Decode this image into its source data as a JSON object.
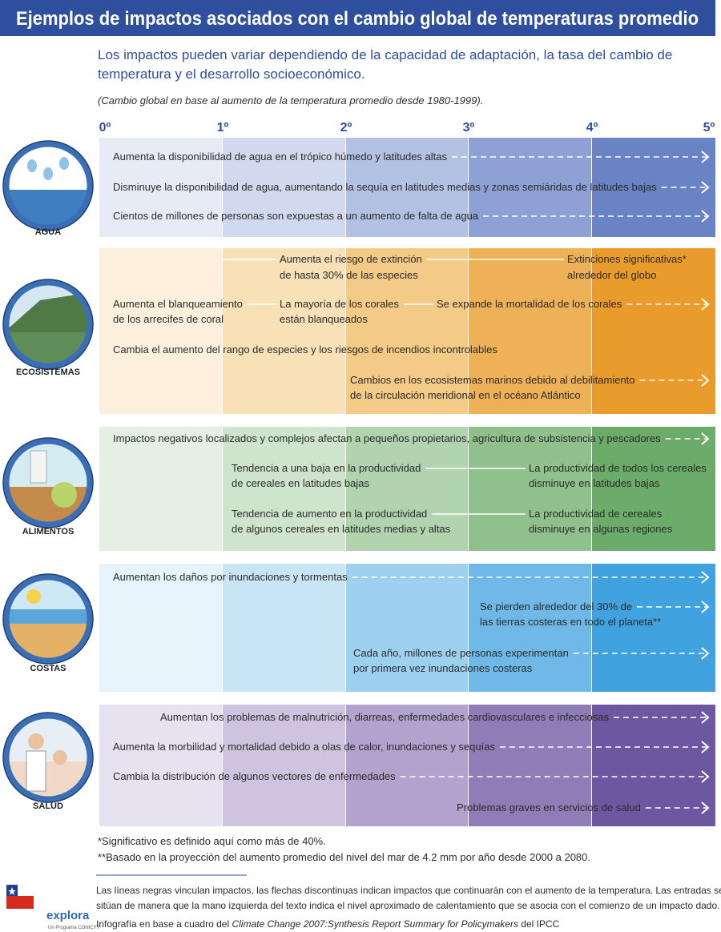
{
  "header": {
    "title": "Ejemplos de impactos asociados con el cambio global de temperaturas promedio",
    "subtitle_lines": [
      "Los impactos pueden variar dependiendo de la capacidad de adaptación, la tasa del cambio de",
      "temperatura y el desarrollo socioeconómico."
    ],
    "note": "(Cambio global en base al aumento de la temperatura promedio desde 1980-1999)."
  },
  "scale": [
    "0º",
    "1º",
    "2º",
    "3º",
    "4º",
    "5º"
  ],
  "sections": [
    {
      "label": "AGUA",
      "items": [
        {
          "lines": [
            "Aumenta la disponibilidad de agua en el trópico húmedo y latitudes altas"
          ]
        },
        {
          "lines": [
            "Disminuye la disponibilidad de agua, aumentando la sequía en latitudes medias y zonas semiáridas de latitudes bajas"
          ]
        },
        {
          "lines": [
            "Cientos de millones de personas son expuestas a un aumento de falta de agua"
          ]
        }
      ]
    },
    {
      "label": "ECOSISTEMAS",
      "items": [
        {
          "lines": [
            "Aumenta el riesgo de extinción",
            "de hasta 30% de las especies"
          ]
        },
        {
          "lines": [
            "Extinciones significativas*",
            "alrededor del globo"
          ]
        },
        {
          "lines": [
            "Aumenta el blanqueamiento",
            "de los arrecifes de coral"
          ]
        },
        {
          "lines": [
            "La mayoría de los corales",
            "están blanqueados"
          ]
        },
        {
          "lines": [
            "Se expande la mortalidad de los corales"
          ]
        },
        {
          "lines": [
            "Cambia el aumento del rango de especies y los riesgos de incendios incontrolables"
          ]
        },
        {
          "lines": [
            "Cambios en los ecosistemas marinos debido al debilitamiento",
            "de la circulación meridional en el océano Atlántico"
          ]
        }
      ]
    },
    {
      "label": "ALIMENTOS",
      "items": [
        {
          "lines": [
            "Impactos negativos localizados y complejos afectan a pequeños propietarios, agricultura de subsistencia y pescadores"
          ]
        },
        {
          "lines": [
            "Tendencia a una baja en la productividad",
            "de cereales en latitudes bajas"
          ]
        },
        {
          "lines": [
            "La productividad de todos los cereales",
            "disminuye en latitudes bajas"
          ]
        },
        {
          "lines": [
            "Tendencia de aumento en la productividad",
            "de algunos cereales en latitudes medias y altas"
          ]
        },
        {
          "lines": [
            "La productividad de cereales",
            "disminuye en algunas regiones"
          ]
        }
      ]
    },
    {
      "label": "COSTAS",
      "items": [
        {
          "lines": [
            "Aumentan los daños por inundaciones y tormentas"
          ]
        },
        {
          "lines": [
            "Se pierden alrededor del 30% de",
            "las tierras costeras en todo el planeta**"
          ]
        },
        {
          "lines": [
            "Cada año, millones de personas experimentan",
            "por primera vez inundaciones costeras"
          ]
        }
      ]
    },
    {
      "label": "SALUD",
      "items": [
        {
          "lines": [
            "Aumentan los problemas de malnutrición, diarreas, enfermedades cardiovasculares e infecciosas"
          ]
        },
        {
          "lines": [
            "Aumenta la morbilidad y mortalidad debido a olas de calor, inundaciones y sequías"
          ]
        },
        {
          "lines": [
            "Cambia la distribución de algunos vectores de enfermedades"
          ]
        },
        {
          "lines": [
            "Problemas graves en servicios de salud"
          ]
        }
      ]
    }
  ],
  "footnotes": [
    "*Significativo es definido aquí como más de 40%.",
    "**Basado en la proyección del aumento promedio del nivel del mar de 4.2 mm por año desde 2000 a 2080."
  ],
  "legend_lines": [
    "Las líneas negras vinculan impactos, las flechas discontinuas indican impactos que continuarán con el aumento de la temperatura. Las entradas se",
    "sitúan de manera que la mano izquierda del texto indica el nivel aproximado de calentamiento que se asocia con el comienzo de un impacto dado."
  ],
  "source": {
    "before": "Infografía en base a cuadro del ",
    "title": "Climate Change 2007:Synthesis Report Summary for Policymakers",
    "after": " del IPCC"
  },
  "logo": {
    "name": "explora",
    "tagline": "Un Programa CONICYT"
  }
}
